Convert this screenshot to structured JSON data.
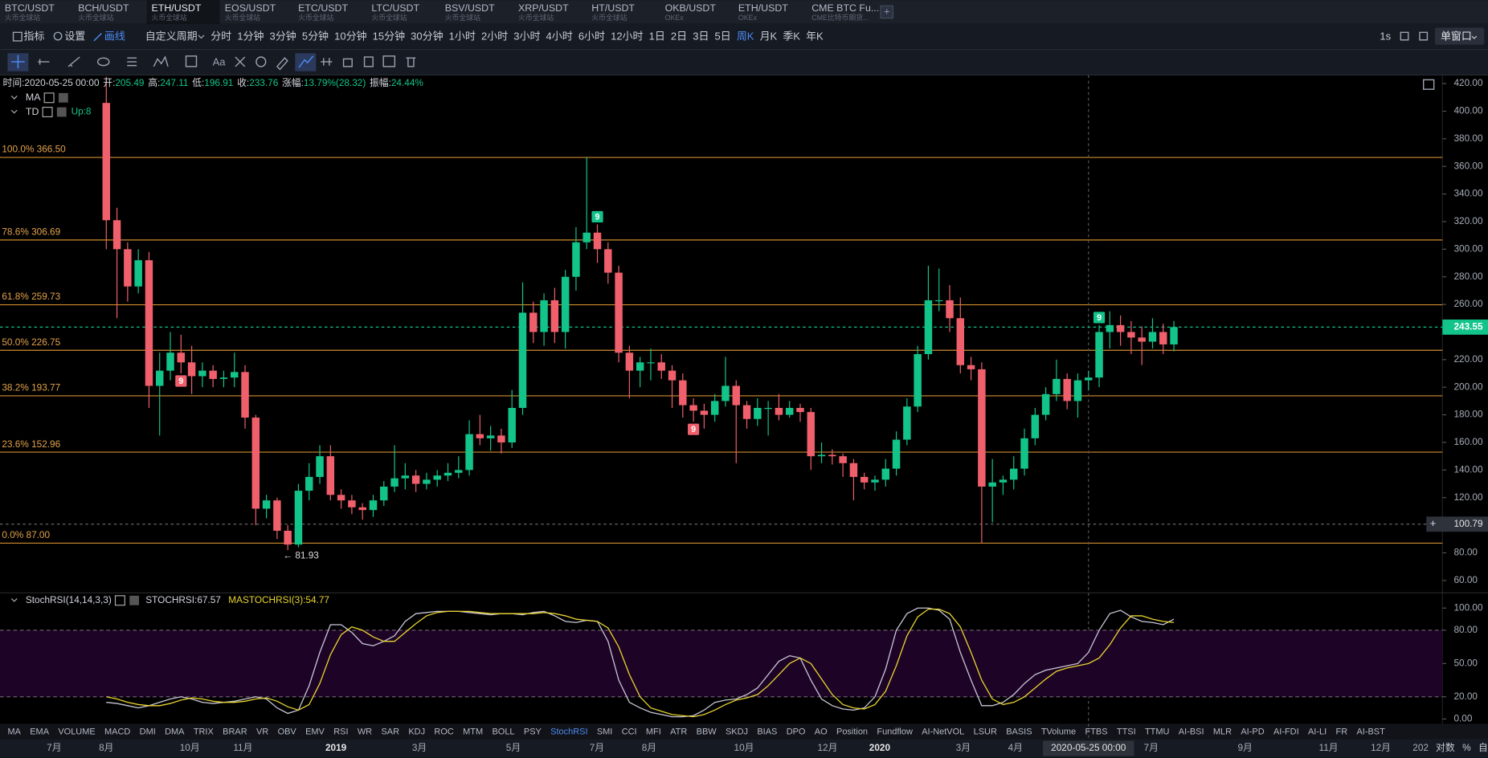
{
  "tabs": [
    {
      "name": "BTC/USDT",
      "exchange": "火币全球站"
    },
    {
      "name": "BCH/USDT",
      "exchange": "火币全球站"
    },
    {
      "name": "ETH/USDT",
      "exchange": "火币全球站"
    },
    {
      "name": "EOS/USDT",
      "exchange": "火币全球站"
    },
    {
      "name": "ETC/USDT",
      "exchange": "火币全球站"
    },
    {
      "name": "LTC/USDT",
      "exchange": "火币全球站"
    },
    {
      "name": "BSV/USDT",
      "exchange": "火币全球站"
    },
    {
      "name": "XRP/USDT",
      "exchange": "火币全球站"
    },
    {
      "name": "HT/USDT",
      "exchange": "火币全球站"
    },
    {
      "name": "OKB/USDT",
      "exchange": "OKEx"
    },
    {
      "name": "ETH/USDT",
      "exchange": "OKEx"
    },
    {
      "name": "CME BTC Fu...",
      "exchange": "CME比特币期货..."
    }
  ],
  "toolbar": {
    "indicators": "指标",
    "settings": "设置",
    "draw": "画线",
    "custom_period": "自定义周期",
    "periods": [
      "分时",
      "1分钟",
      "3分钟",
      "5分钟",
      "10分钟",
      "15分钟",
      "30分钟",
      "1小时",
      "2小时",
      "3小时",
      "4小时",
      "6小时",
      "12小时",
      "1日",
      "2日",
      "3日",
      "5日",
      "周K",
      "月K",
      "季K",
      "年K"
    ],
    "interval": "1s",
    "window": "单窗口",
    "text_tool": "Aa"
  },
  "chart": {
    "type": "candlestick",
    "info": [
      {
        "label": "时间:",
        "value": "2020-05-25 00:00"
      },
      {
        "label": "开:",
        "value": "205.49"
      },
      {
        "label": "高:",
        "value": "247.11"
      },
      {
        "label": "低:",
        "value": "196.91"
      },
      {
        "label": "收:",
        "value": "233.76"
      },
      {
        "label": "涨幅:",
        "value": "13.79%(28.32)"
      },
      {
        "label": "振幅:",
        "value": "24.44%"
      }
    ],
    "overlays": [
      "MA",
      "TD"
    ],
    "td_status": "Up:8",
    "candles": [
      [
        406,
        425,
        300,
        321
      ],
      [
        321,
        330,
        250,
        300
      ],
      [
        300,
        305,
        262,
        273
      ],
      [
        273,
        300,
        268,
        292
      ],
      [
        292,
        298,
        185,
        201
      ],
      [
        201,
        225,
        165,
        212
      ],
      [
        212,
        240,
        205,
        225
      ],
      [
        225,
        238,
        210,
        218
      ],
      [
        218,
        230,
        195,
        208
      ],
      [
        208,
        218,
        200,
        212
      ],
      [
        212,
        216,
        200,
        206
      ],
      [
        206,
        212,
        200,
        207
      ],
      [
        207,
        225,
        200,
        211
      ],
      [
        211,
        216,
        170,
        178
      ],
      [
        178,
        180,
        100,
        112
      ],
      [
        112,
        122,
        105,
        118
      ],
      [
        118,
        120,
        90,
        96
      ],
      [
        96,
        100,
        81.93,
        86
      ],
      [
        86,
        130,
        84,
        125
      ],
      [
        125,
        145,
        118,
        135
      ],
      [
        135,
        158,
        130,
        150
      ],
      [
        150,
        158,
        118,
        122
      ],
      [
        122,
        126,
        112,
        118
      ],
      [
        118,
        122,
        108,
        113
      ],
      [
        113,
        116,
        104,
        111
      ],
      [
        111,
        122,
        106,
        118
      ],
      [
        118,
        132,
        114,
        128
      ],
      [
        128,
        158,
        124,
        134
      ],
      [
        134,
        145,
        126,
        136
      ],
      [
        136,
        140,
        124,
        130
      ],
      [
        130,
        138,
        126,
        133
      ],
      [
        133,
        140,
        128,
        136
      ],
      [
        136,
        145,
        132,
        138
      ],
      [
        138,
        150,
        134,
        140
      ],
      [
        140,
        176,
        136,
        166
      ],
      [
        166,
        180,
        158,
        163
      ],
      [
        163,
        172,
        154,
        165
      ],
      [
        165,
        170,
        152,
        160
      ],
      [
        160,
        198,
        156,
        185
      ],
      [
        185,
        276,
        180,
        254
      ],
      [
        254,
        262,
        232,
        240
      ],
      [
        240,
        268,
        230,
        263
      ],
      [
        263,
        272,
        232,
        240
      ],
      [
        240,
        285,
        228,
        280
      ],
      [
        280,
        316,
        270,
        305
      ],
      [
        305,
        366.5,
        300,
        312
      ],
      [
        312,
        318,
        290,
        300
      ],
      [
        300,
        305,
        275,
        283
      ],
      [
        283,
        288,
        218,
        225
      ],
      [
        225,
        230,
        192,
        212
      ],
      [
        212,
        222,
        200,
        218
      ],
      [
        218,
        228,
        205,
        218
      ],
      [
        218,
        224,
        206,
        212
      ],
      [
        212,
        216,
        185,
        205
      ],
      [
        205,
        210,
        178,
        187
      ],
      [
        187,
        192,
        175,
        183
      ],
      [
        183,
        188,
        170,
        180
      ],
      [
        180,
        195,
        175,
        190
      ],
      [
        190,
        222,
        186,
        201
      ],
      [
        201,
        205,
        145,
        187
      ],
      [
        187,
        190,
        170,
        177
      ],
      [
        177,
        192,
        172,
        185
      ],
      [
        185,
        190,
        165,
        185
      ],
      [
        185,
        195,
        176,
        180
      ],
      [
        180,
        190,
        178,
        185
      ],
      [
        185,
        188,
        175,
        182
      ],
      [
        182,
        185,
        140,
        150
      ],
      [
        150,
        160,
        145,
        151
      ],
      [
        151,
        155,
        144,
        150
      ],
      [
        150,
        152,
        135,
        145
      ],
      [
        145,
        148,
        118,
        135
      ],
      [
        135,
        138,
        126,
        131
      ],
      [
        131,
        136,
        125,
        133
      ],
      [
        133,
        148,
        128,
        141
      ],
      [
        141,
        168,
        136,
        162
      ],
      [
        162,
        192,
        158,
        186
      ],
      [
        186,
        230,
        182,
        224
      ],
      [
        224,
        288,
        220,
        263
      ],
      [
        263,
        286,
        255,
        263
      ],
      [
        263,
        274,
        240,
        250
      ],
      [
        250,
        265,
        210,
        216
      ],
      [
        216,
        222,
        205,
        213
      ],
      [
        213,
        218,
        87,
        128
      ],
      [
        128,
        148,
        102,
        131
      ],
      [
        131,
        136,
        122,
        133
      ],
      [
        133,
        150,
        126,
        141
      ],
      [
        141,
        170,
        136,
        163
      ],
      [
        163,
        185,
        158,
        180
      ],
      [
        180,
        200,
        176,
        195
      ],
      [
        195,
        220,
        190,
        206
      ],
      [
        206,
        210,
        184,
        190
      ],
      [
        190,
        210,
        178,
        205
      ],
      [
        205,
        212,
        198,
        207
      ],
      [
        207,
        245,
        200,
        240
      ],
      [
        240,
        255,
        228,
        245
      ],
      [
        245,
        252,
        230,
        240
      ],
      [
        240,
        248,
        224,
        236
      ],
      [
        236,
        244,
        216,
        233
      ],
      [
        233,
        250,
        228,
        240
      ],
      [
        240,
        246,
        224,
        231
      ],
      [
        231,
        248,
        226,
        243.55
      ]
    ],
    "ylim": [
      51,
      425.5
    ],
    "yticks": [
      {
        "value": 420,
        "label": "420.00"
      },
      {
        "value": 400,
        "label": "400.00"
      },
      {
        "value": 380,
        "label": "380.00"
      },
      {
        "value": 360,
        "label": "360.00"
      },
      {
        "value": 340,
        "label": "340.00"
      },
      {
        "value": 320,
        "label": "320.00"
      },
      {
        "value": 300,
        "label": "300.00"
      },
      {
        "value": 280,
        "label": "280.00"
      },
      {
        "value": 260,
        "label": "260.00"
      },
      {
        "value": 240,
        "label": "240.00"
      },
      {
        "value": 220,
        "label": "220.00"
      },
      {
        "value": 200,
        "label": "200.00"
      },
      {
        "value": 180,
        "label": "180.00"
      },
      {
        "value": 160,
        "label": "160.00"
      },
      {
        "value": 140,
        "label": "140.00"
      },
      {
        "value": 120,
        "label": "120.00"
      },
      {
        "value": 100,
        "label": "100.00"
      },
      {
        "value": 80,
        "label": "80.00"
      },
      {
        "value": 60,
        "label": "60.00"
      }
    ],
    "fib": [
      {
        "label": "100.0% 366.50",
        "value": 366.5
      },
      {
        "label": "78.6% 306.69",
        "value": 306.69
      },
      {
        "label": "61.8% 259.73",
        "value": 259.73
      },
      {
        "label": "50.0% 226.75",
        "value": 226.75
      },
      {
        "label": "38.2% 193.77",
        "value": 193.77
      },
      {
        "label": "23.6% 152.96",
        "value": 152.96
      },
      {
        "label": "0.0% 87.00",
        "value": 87
      }
    ],
    "last_price": 243.55,
    "crosshair_price": 100.79,
    "crosshair_time": "2020-05-25 00:00",
    "low_label": "← 81.93",
    "td_signals": [
      "9",
      "9",
      "9",
      "9"
    ],
    "xlabels": [
      "7月",
      "8月",
      "10月",
      "11月",
      "2019",
      "3月",
      "5月",
      "7月",
      "8月",
      "10月",
      "12月",
      "2020",
      "3月",
      "4月",
      "7月",
      "9月",
      "11月",
      "12月",
      "202"
    ],
    "axis_modes": [
      "对数",
      "%",
      "自动"
    ],
    "colors": {
      "up": "#13c48a",
      "down": "#f0606c",
      "fib": "#d08c2c"
    }
  },
  "stoch": {
    "title": "StochRSI(14,14,3,3)",
    "series": [
      {
        "name": "STOCHRSI:67.57",
        "color": "#c9c6d6",
        "values": [
          15,
          14,
          12,
          10,
          12,
          15,
          18,
          20,
          18,
          15,
          14,
          15,
          16,
          18,
          20,
          18,
          10,
          5,
          8,
          30,
          60,
          85,
          85,
          78,
          68,
          66,
          70,
          75,
          88,
          95,
          96,
          97,
          97,
          97,
          96,
          95,
          94,
          95,
          95,
          94,
          96,
          97,
          93,
          88,
          87,
          89,
          88,
          70,
          35,
          15,
          10,
          6,
          4,
          2,
          2,
          3,
          8,
          15,
          17,
          18,
          22,
          28,
          40,
          52,
          57,
          55,
          35,
          18,
          12,
          9,
          8,
          10,
          20,
          45,
          80,
          95,
          100,
          100,
          98,
          90,
          60,
          35,
          12,
          12,
          15,
          22,
          32,
          40,
          44,
          46,
          48,
          50,
          60,
          80,
          95,
          98,
          92,
          88,
          87,
          85,
          90
        ]
      },
      {
        "name": "MASTOCHRSI(3):54.77",
        "color": "#e8d42f",
        "values": [
          20,
          18,
          15,
          13,
          12,
          12,
          14,
          17,
          19,
          18,
          16,
          15,
          15,
          16,
          18,
          19,
          16,
          11,
          8,
          13,
          32,
          58,
          76,
          83,
          80,
          74,
          70,
          70,
          78,
          86,
          93,
          96,
          97,
          97,
          97,
          96,
          95,
          95,
          95,
          95,
          95,
          96,
          95,
          93,
          90,
          89,
          88,
          82,
          65,
          40,
          20,
          10,
          7,
          4,
          3,
          2,
          4,
          8,
          13,
          17,
          19,
          22,
          30,
          40,
          50,
          55,
          50,
          36,
          22,
          13,
          10,
          9,
          13,
          25,
          48,
          75,
          92,
          99,
          99,
          95,
          83,
          60,
          35,
          18,
          13,
          15,
          20,
          28,
          36,
          43,
          46,
          48,
          50,
          55,
          67,
          82,
          93,
          93,
          90,
          88,
          87
        ]
      }
    ],
    "ylim": [
      -4.3,
      113.7
    ],
    "yticks": [
      {
        "value": 100,
        "label": "100.00"
      },
      {
        "value": 80,
        "label": "80.00"
      },
      {
        "value": 50,
        "label": "50.00"
      },
      {
        "value": 20,
        "label": "20.00"
      },
      {
        "value": 0,
        "label": "0.00"
      }
    ],
    "band": [
      20,
      80
    ]
  },
  "indicators": [
    "MA",
    "EMA",
    "VOLUME",
    "MACD",
    "DMI",
    "DMA",
    "TRIX",
    "BRAR",
    "VR",
    "OBV",
    "EMV",
    "RSI",
    "WR",
    "SAR",
    "KDJ",
    "ROC",
    "MTM",
    "BOLL",
    "PSY",
    "StochRSI",
    "SMI",
    "CCI",
    "MFI",
    "ATR",
    "BBW",
    "SKDJ",
    "BIAS",
    "DPO",
    "AO",
    "Position",
    "Fundflow",
    "AI-NetVOL",
    "LSUR",
    "BASIS",
    "TVolume",
    "FTBS",
    "TTSI",
    "TTMU",
    "AI-BSI",
    "MLR",
    "AI-PD",
    "AI-FDI",
    "AI-LI",
    "FR",
    "AI-BST"
  ]
}
